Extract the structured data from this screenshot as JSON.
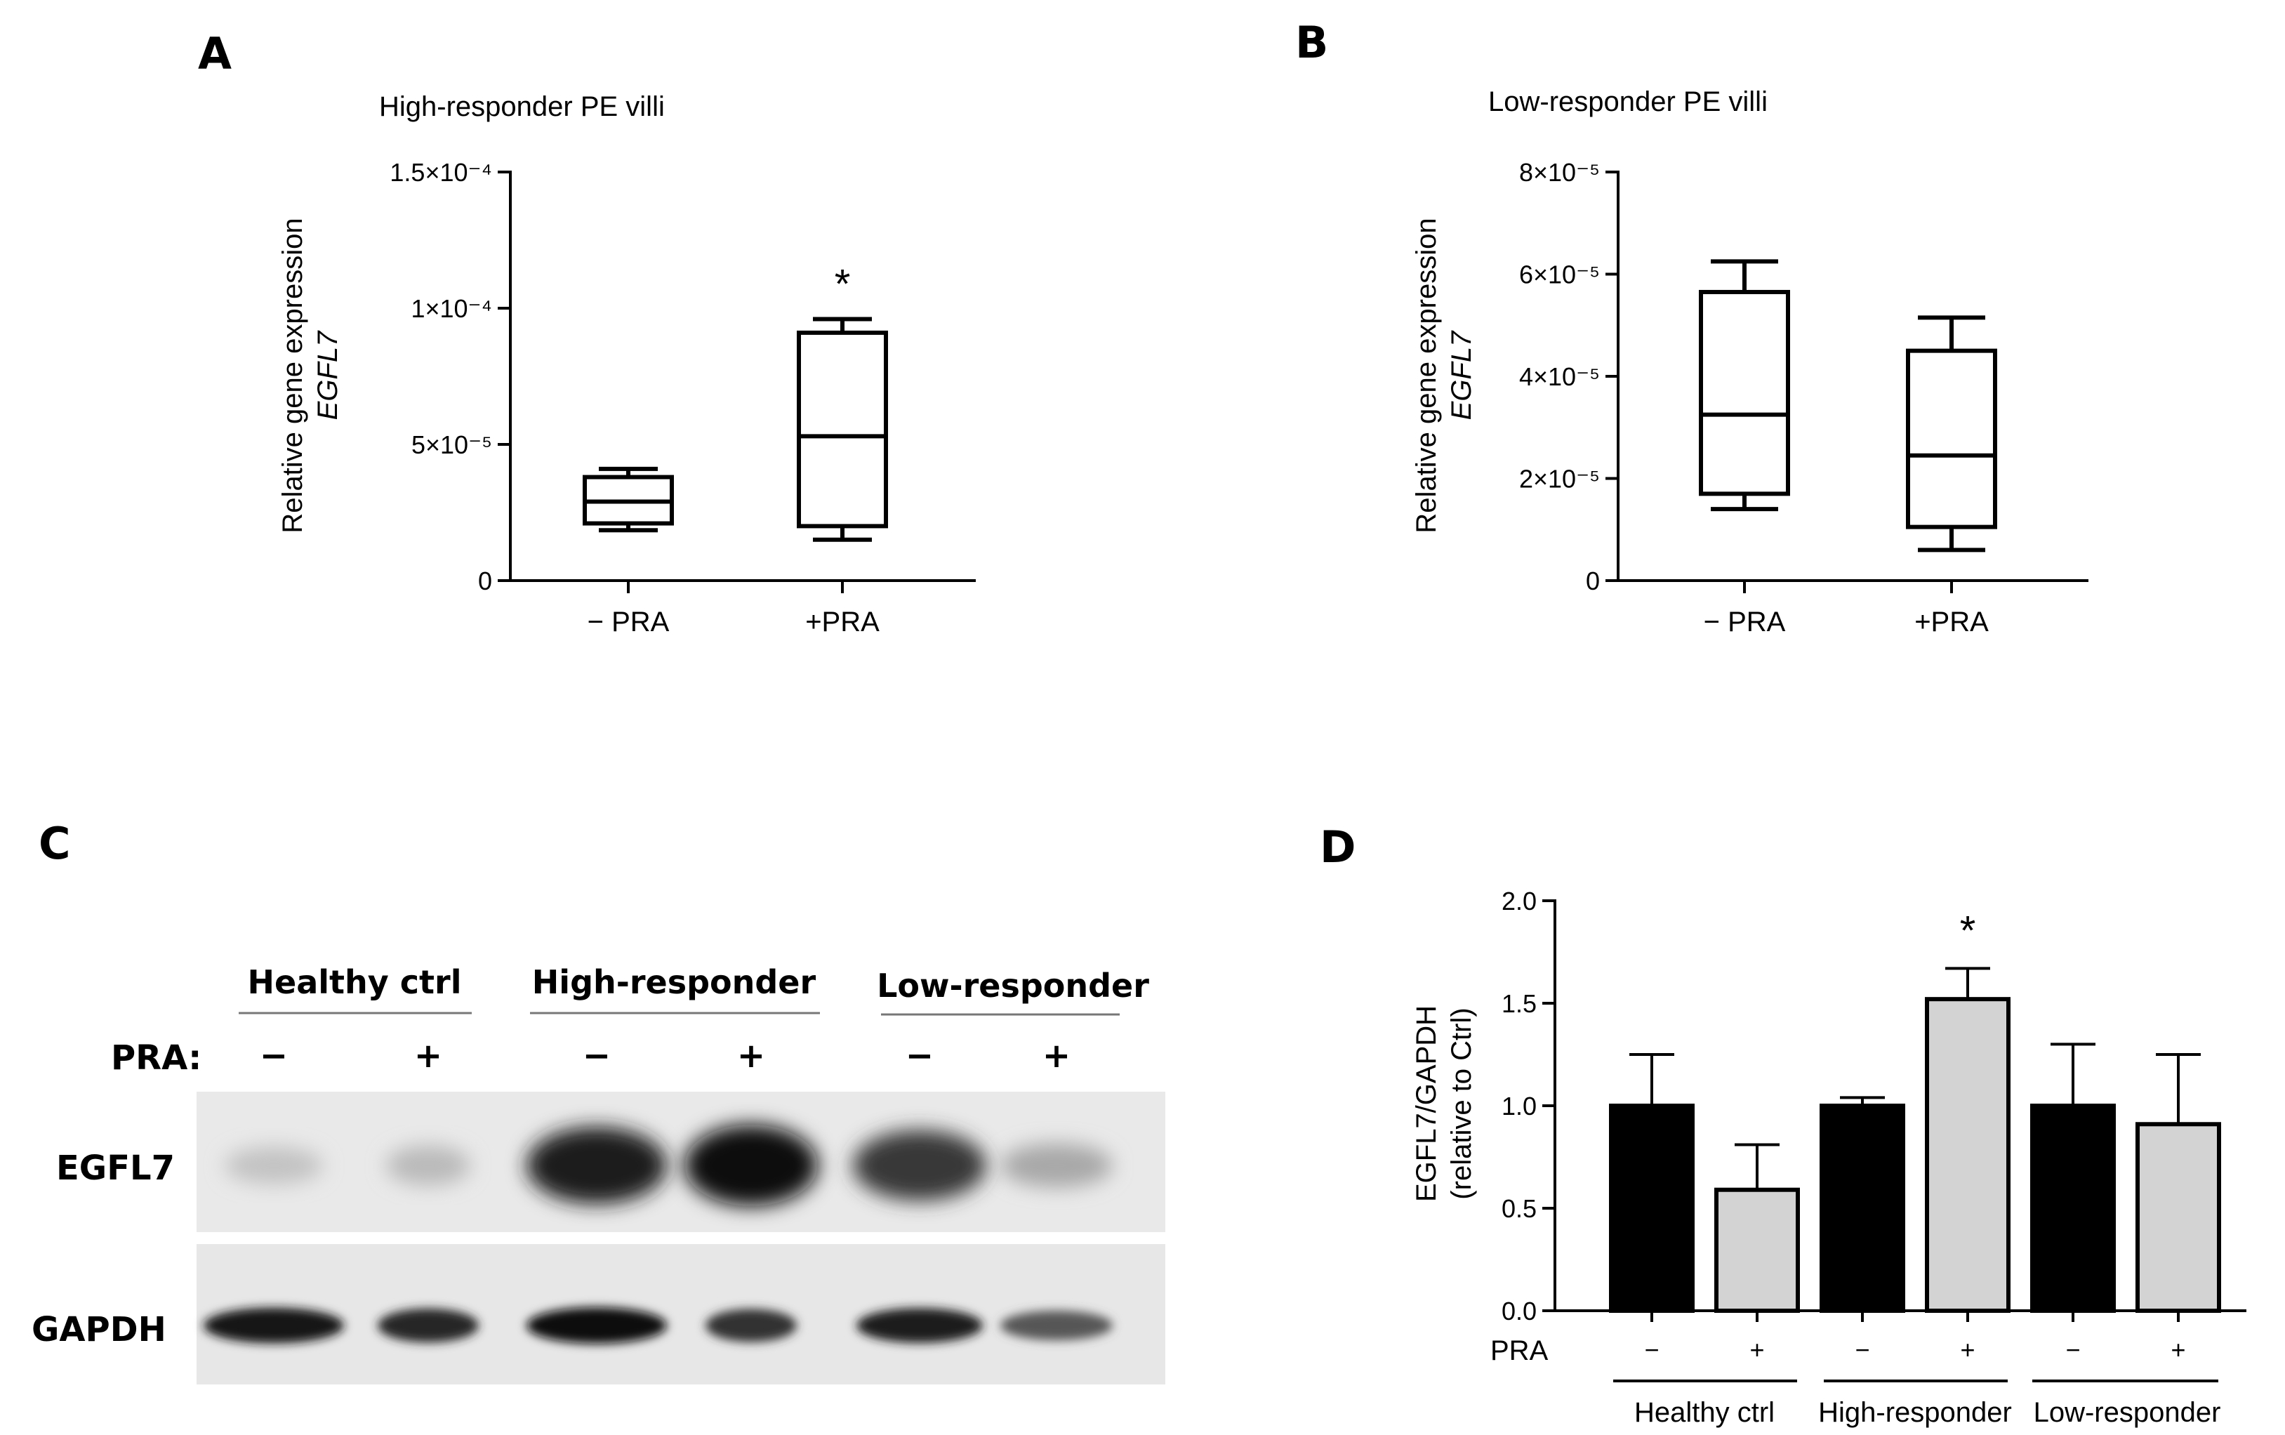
{
  "panels": {
    "A": "A",
    "B": "B",
    "C": "C",
    "D": "D"
  },
  "chart_data": [
    {
      "panel": "A",
      "type": "box",
      "title": "High-responder PE villi",
      "ylabel_line1": "Relative gene expression",
      "ylabel_line2": "EGFL7",
      "ylim": [
        0,
        0.00015
      ],
      "yticks": [
        {
          "value": 0,
          "label": "0"
        },
        {
          "value": 5e-05,
          "label": "5×10⁻⁵"
        },
        {
          "value": 0.0001,
          "label": "1×10⁻⁴"
        },
        {
          "value": 0.00015,
          "label": "1.5×10⁻⁴"
        }
      ],
      "categories": [
        "− PRA",
        "+PRA"
      ],
      "boxes": [
        {
          "min": 1.85e-05,
          "q1": 2.1e-05,
          "median": 2.9e-05,
          "q3": 3.8e-05,
          "max": 4.1e-05
        },
        {
          "min": 1.5e-05,
          "q1": 2e-05,
          "median": 5.3e-05,
          "q3": 9.1e-05,
          "max": 9.6e-05
        }
      ],
      "annotations": [
        {
          "category_index": 1,
          "text": "*"
        }
      ]
    },
    {
      "panel": "B",
      "type": "box",
      "title": "Low-responder PE villi",
      "ylabel_line1": "Relative gene expression",
      "ylabel_line2": "EGFL7",
      "ylim": [
        0,
        8e-05
      ],
      "yticks": [
        {
          "value": 0,
          "label": "0"
        },
        {
          "value": 2e-05,
          "label": "2×10⁻⁵"
        },
        {
          "value": 4e-05,
          "label": "4×10⁻⁵"
        },
        {
          "value": 6e-05,
          "label": "6×10⁻⁵"
        },
        {
          "value": 8e-05,
          "label": "8×10⁻⁵"
        }
      ],
      "categories": [
        "− PRA",
        "+PRA"
      ],
      "boxes": [
        {
          "min": 1.4e-05,
          "q1": 1.7e-05,
          "median": 3.25e-05,
          "q3": 5.65e-05,
          "max": 6.25e-05
        },
        {
          "min": 6e-06,
          "q1": 1.05e-05,
          "median": 2.45e-05,
          "q3": 4.5e-05,
          "max": 5.15e-05
        }
      ],
      "annotations": []
    },
    {
      "panel": "D",
      "type": "bar",
      "ylabel_line1": "EGFL7/GAPDH",
      "ylabel_line2": "(relative to Ctrl)",
      "ylim": [
        0,
        2.0
      ],
      "yticks": [
        {
          "value": 0,
          "label": "0.0"
        },
        {
          "value": 0.5,
          "label": "0.5"
        },
        {
          "value": 1.0,
          "label": "1.0"
        },
        {
          "value": 1.5,
          "label": "1.5"
        },
        {
          "value": 2.0,
          "label": "2.0"
        }
      ],
      "pra_label": "PRA",
      "bars": [
        {
          "group": "Healthy ctrl",
          "pra": "−",
          "value": 1.0,
          "error": 0.25,
          "color": "#000000"
        },
        {
          "group": "Healthy ctrl",
          "pra": "+",
          "value": 0.59,
          "error": 0.22,
          "color": "#d3d3d3"
        },
        {
          "group": "High-responder",
          "pra": "−",
          "value": 1.0,
          "error": 0.04,
          "color": "#000000"
        },
        {
          "group": "High-responder",
          "pra": "+",
          "value": 1.52,
          "error": 0.15,
          "color": "#d3d3d3"
        },
        {
          "group": "Low-responder",
          "pra": "−",
          "value": 1.0,
          "error": 0.3,
          "color": "#000000"
        },
        {
          "group": "Low-responder",
          "pra": "+",
          "value": 0.91,
          "error": 0.34,
          "color": "#d3d3d3"
        }
      ],
      "groups": [
        "Healthy ctrl",
        "High-responder",
        "Low-responder"
      ],
      "annotations": [
        {
          "bar_index": 3,
          "text": "*"
        }
      ]
    }
  ],
  "blot": {
    "groups": [
      "Healthy ctrl",
      "High-responder",
      "Low-responder"
    ],
    "pra_label": "PRA:",
    "pra_signs": [
      "−",
      "+",
      "−",
      "+",
      "−",
      "+"
    ],
    "rows": [
      {
        "label": "EGFL7",
        "intensities": [
          0.18,
          0.22,
          0.92,
          1.0,
          0.8,
          0.3
        ]
      },
      {
        "label": "GAPDH",
        "intensities": [
          0.95,
          0.85,
          1.0,
          0.8,
          0.9,
          0.6
        ]
      }
    ]
  }
}
